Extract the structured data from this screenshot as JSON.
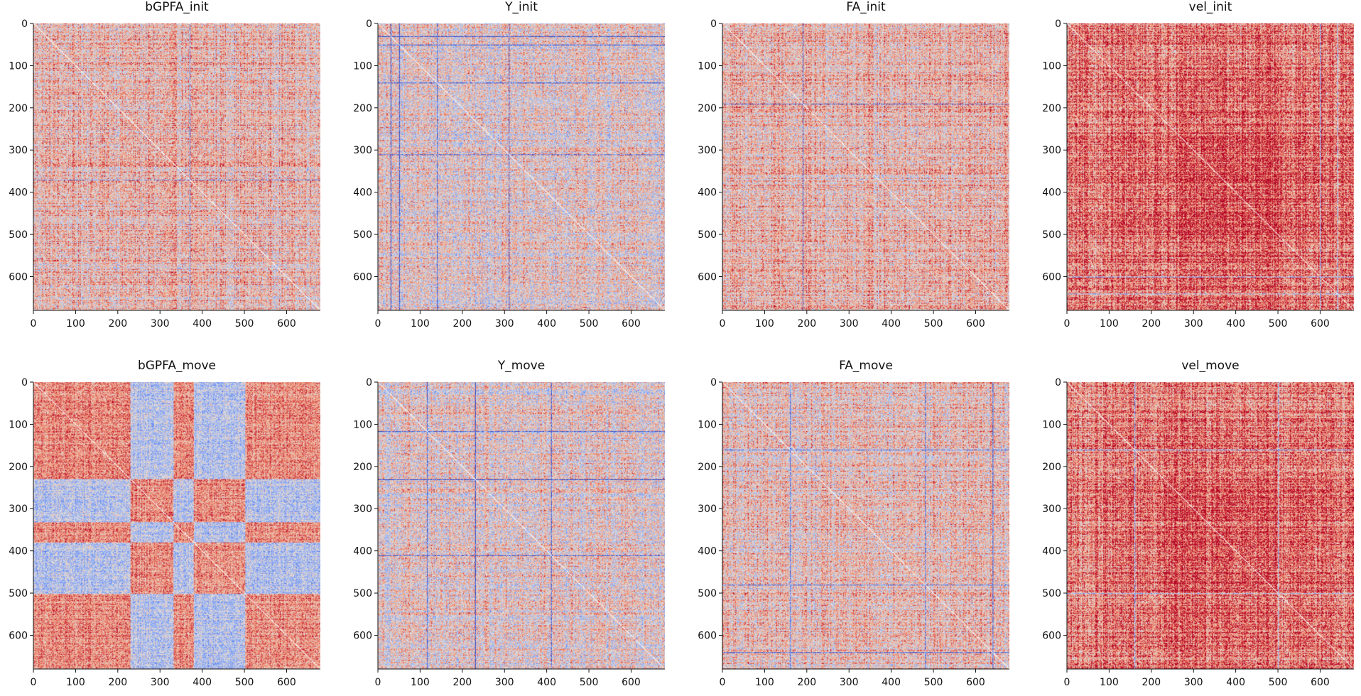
{
  "chart_data": [
    {
      "type": "heatmap",
      "title": "bGPFA_init",
      "n": 680,
      "xlim": [
        0,
        680
      ],
      "ylim": [
        680,
        0
      ],
      "xticks": [
        0,
        100,
        200,
        300,
        400,
        500,
        600
      ],
      "yticks": [
        0,
        100,
        200,
        300,
        400,
        500,
        600
      ],
      "colormap": "coolwarm",
      "diagonal_value": "white",
      "block_structure": "weak",
      "mean_correlation": 0.25,
      "strong_lines": [
        370
      ]
    },
    {
      "type": "heatmap",
      "title": "Y_init",
      "n": 680,
      "xlim": [
        0,
        680
      ],
      "ylim": [
        680,
        0
      ],
      "xticks": [
        0,
        100,
        200,
        300,
        400,
        500,
        600
      ],
      "yticks": [
        0,
        100,
        200,
        300,
        400,
        500,
        600
      ],
      "colormap": "coolwarm",
      "diagonal_value": "white",
      "block_structure": "none",
      "mean_correlation": 0.1,
      "strong_lines": [
        30,
        50,
        140,
        310
      ]
    },
    {
      "type": "heatmap",
      "title": "FA_init",
      "n": 680,
      "xlim": [
        0,
        680
      ],
      "ylim": [
        680,
        0
      ],
      "xticks": [
        0,
        100,
        200,
        300,
        400,
        500,
        600
      ],
      "yticks": [
        0,
        100,
        200,
        300,
        400,
        500,
        600
      ],
      "colormap": "coolwarm",
      "diagonal_value": "white",
      "block_structure": "weak",
      "mean_correlation": 0.25,
      "strong_lines": [
        190
      ]
    },
    {
      "type": "heatmap",
      "title": "vel_init",
      "n": 680,
      "xlim": [
        0,
        680
      ],
      "ylim": [
        680,
        0
      ],
      "xticks": [
        0,
        100,
        200,
        300,
        400,
        500,
        600
      ],
      "yticks": [
        0,
        100,
        200,
        300,
        400,
        500,
        600
      ],
      "colormap": "coolwarm",
      "diagonal_value": "white",
      "block_structure": "center-strong",
      "mean_correlation": 0.5,
      "strong_lines": [
        600,
        640
      ]
    },
    {
      "type": "heatmap",
      "title": "bGPFA_move",
      "n": 680,
      "xlim": [
        0,
        680
      ],
      "ylim": [
        680,
        0
      ],
      "xticks": [
        0,
        100,
        200,
        300,
        400,
        500,
        600
      ],
      "yticks": [
        0,
        100,
        200,
        300,
        400,
        500,
        600
      ],
      "colormap": "coolwarm",
      "diagonal_value": "white",
      "block_structure": "two-blocks",
      "mean_correlation": 0.1,
      "strong_lines": []
    },
    {
      "type": "heatmap",
      "title": "Y_move",
      "n": 680,
      "xlim": [
        0,
        680
      ],
      "ylim": [
        680,
        0
      ],
      "xticks": [
        0,
        100,
        200,
        300,
        400,
        500,
        600
      ],
      "yticks": [
        0,
        100,
        200,
        300,
        400,
        500,
        600
      ],
      "colormap": "coolwarm",
      "diagonal_value": "white",
      "block_structure": "none",
      "mean_correlation": 0.1,
      "strong_lines": [
        115,
        230,
        410
      ]
    },
    {
      "type": "heatmap",
      "title": "FA_move",
      "n": 680,
      "xlim": [
        0,
        680
      ],
      "ylim": [
        680,
        0
      ],
      "xticks": [
        0,
        100,
        200,
        300,
        400,
        500,
        600
      ],
      "yticks": [
        0,
        100,
        200,
        300,
        400,
        500,
        600
      ],
      "colormap": "coolwarm",
      "diagonal_value": "white",
      "block_structure": "weak",
      "mean_correlation": 0.2,
      "strong_lines": [
        160,
        480,
        640
      ]
    },
    {
      "type": "heatmap",
      "title": "vel_move",
      "n": 680,
      "xlim": [
        0,
        680
      ],
      "ylim": [
        680,
        0
      ],
      "xticks": [
        0,
        100,
        200,
        300,
        400,
        500,
        600
      ],
      "yticks": [
        0,
        100,
        200,
        300,
        400,
        500,
        600
      ],
      "colormap": "coolwarm",
      "diagonal_value": "white",
      "block_structure": "center-strong",
      "mean_correlation": 0.5,
      "strong_lines": [
        160,
        500
      ]
    }
  ]
}
